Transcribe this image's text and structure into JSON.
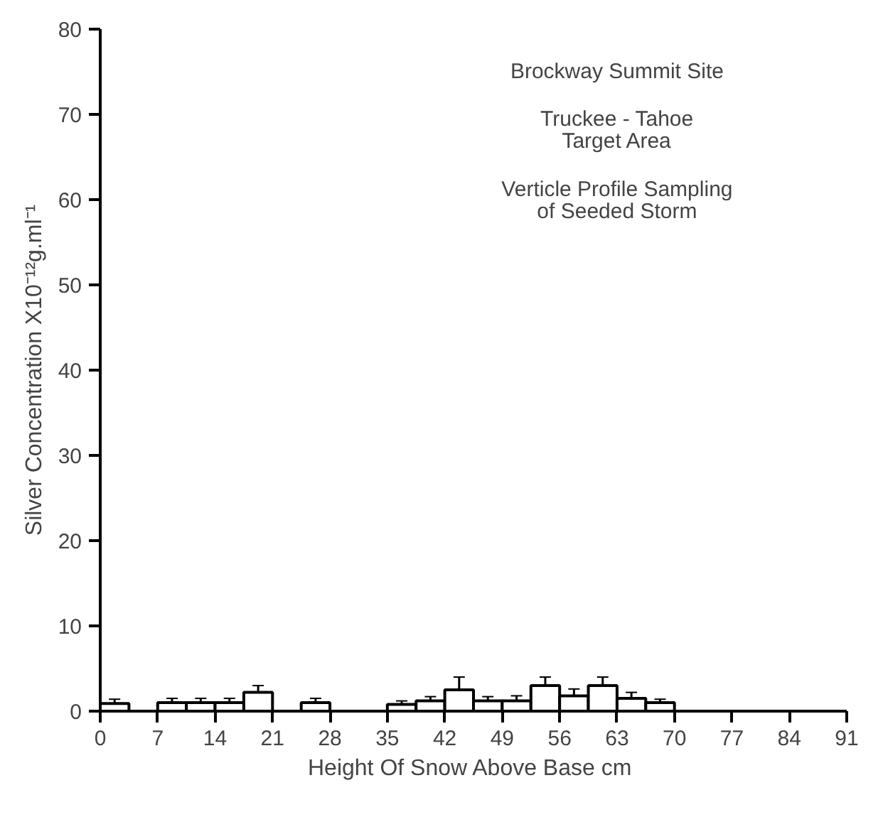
{
  "chart_data": {
    "type": "histogram",
    "xlabel": "Height Of Snow Above Base  cm",
    "ylabel": "Silver Concentration X10⁻¹²g.ml⁻¹",
    "annotations": [
      "Brockway Summit Site",
      "Truckee - Tahoe\nTarget Area",
      "Verticle Profile Sampling\nof Seeded Storm"
    ],
    "bins": [
      0,
      3.5,
      7,
      10.5,
      14,
      17.5,
      21,
      24.5,
      28,
      31.5,
      35,
      38.5,
      42,
      45.5,
      49,
      52.5,
      56,
      59.5,
      63,
      66.5,
      70
    ],
    "values": [
      0.9,
      null,
      1.0,
      1.0,
      1.0,
      2.2,
      null,
      1.0,
      null,
      null,
      0.8,
      1.2,
      2.5,
      1.2,
      1.2,
      3.0,
      1.8,
      3.0,
      1.5,
      1.0
    ],
    "errors": [
      0.5,
      null,
      0.5,
      0.5,
      0.5,
      0.8,
      null,
      0.5,
      null,
      null,
      0.4,
      0.5,
      1.5,
      0.5,
      0.6,
      1.0,
      0.8,
      1.0,
      0.7,
      0.4
    ],
    "color": "#ffffff",
    "xlim": [
      0,
      91
    ],
    "xticks": [
      0,
      7,
      14,
      21,
      28,
      35,
      42,
      49,
      56,
      63,
      70,
      77,
      84,
      91
    ],
    "ylim": [
      0,
      80
    ],
    "yticks": [
      0,
      10,
      20,
      30,
      40,
      50,
      60,
      70,
      80
    ],
    "grid": false
  }
}
